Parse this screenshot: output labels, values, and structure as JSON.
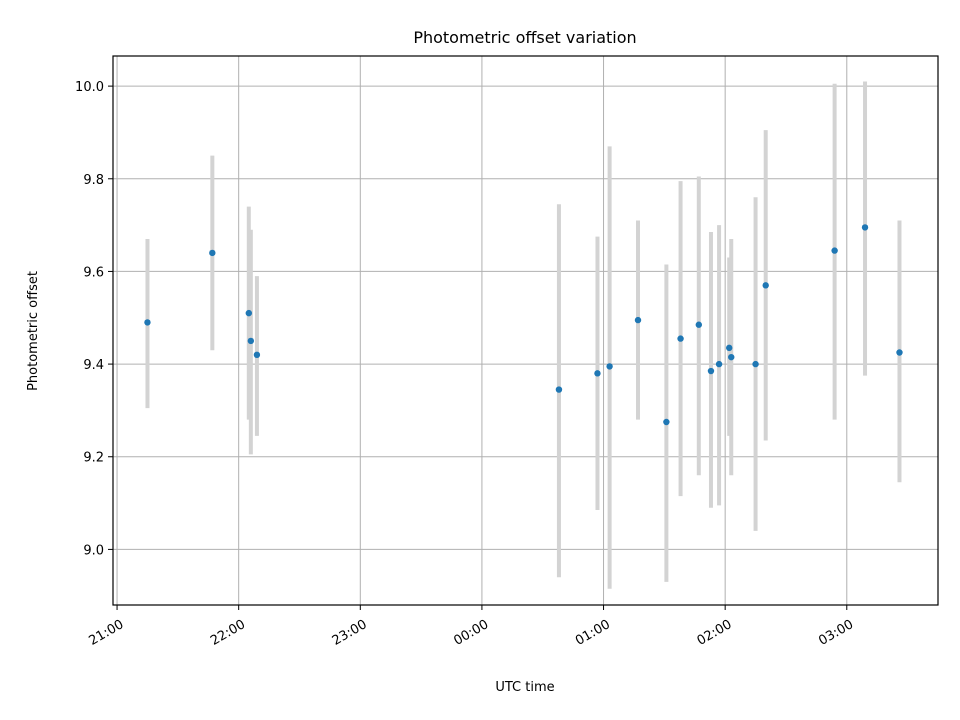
{
  "chart_data": {
    "type": "scatter",
    "title": "Photometric offset variation",
    "xlabel": "UTC time",
    "ylabel": "Photometric offset",
    "grid": true,
    "x_is_time": true,
    "x_tick_labels": [
      "21:00",
      "22:00",
      "23:00",
      "00:00",
      "01:00",
      "02:00",
      "03:00"
    ],
    "y_tick_labels": [
      "9.0",
      "9.2",
      "9.4",
      "9.6",
      "9.8",
      "10.0"
    ],
    "y_ticks": [
      9.0,
      9.2,
      9.4,
      9.6,
      9.8,
      10.0
    ],
    "xlim": [
      "20:58",
      "27:45"
    ],
    "ylim": [
      8.88,
      10.065
    ],
    "colors": {
      "point": "#1f77b4",
      "errorbar": "#d3d3d3"
    },
    "points": [
      {
        "x": "21:15",
        "y": 9.49,
        "ylow": 9.305,
        "yhigh": 9.67
      },
      {
        "x": "21:47",
        "y": 9.64,
        "ylow": 9.43,
        "yhigh": 9.85
      },
      {
        "x": "22:05",
        "y": 9.51,
        "ylow": 9.28,
        "yhigh": 9.74
      },
      {
        "x": "22:06",
        "y": 9.45,
        "ylow": 9.205,
        "yhigh": 9.69
      },
      {
        "x": "22:09",
        "y": 9.42,
        "ylow": 9.245,
        "yhigh": 9.59
      },
      {
        "x": "00:38",
        "y": 9.345,
        "ylow": 8.94,
        "yhigh": 9.745
      },
      {
        "x": "00:57",
        "y": 9.38,
        "ylow": 9.085,
        "yhigh": 9.675
      },
      {
        "x": "01:03",
        "y": 9.395,
        "ylow": 8.915,
        "yhigh": 9.87
      },
      {
        "x": "01:17",
        "y": 9.495,
        "ylow": 9.28,
        "yhigh": 9.71
      },
      {
        "x": "01:31",
        "y": 9.275,
        "ylow": 8.93,
        "yhigh": 9.615
      },
      {
        "x": "01:38",
        "y": 9.455,
        "ylow": 9.115,
        "yhigh": 9.795
      },
      {
        "x": "01:47",
        "y": 9.485,
        "ylow": 9.16,
        "yhigh": 9.805
      },
      {
        "x": "01:53",
        "y": 9.385,
        "ylow": 9.09,
        "yhigh": 9.685
      },
      {
        "x": "01:57",
        "y": 9.4,
        "ylow": 9.095,
        "yhigh": 9.7
      },
      {
        "x": "02:02",
        "y": 9.435,
        "ylow": 9.245,
        "yhigh": 9.63
      },
      {
        "x": "02:03",
        "y": 9.415,
        "ylow": 9.16,
        "yhigh": 9.67
      },
      {
        "x": "02:15",
        "y": 9.4,
        "ylow": 9.04,
        "yhigh": 9.76
      },
      {
        "x": "02:20",
        "y": 9.57,
        "ylow": 9.235,
        "yhigh": 9.905
      },
      {
        "x": "02:54",
        "y": 9.645,
        "ylow": 9.28,
        "yhigh": 10.005
      },
      {
        "x": "03:09",
        "y": 9.695,
        "ylow": 9.375,
        "yhigh": 10.01
      },
      {
        "x": "03:26",
        "y": 9.425,
        "ylow": 9.145,
        "yhigh": 9.71
      }
    ]
  }
}
